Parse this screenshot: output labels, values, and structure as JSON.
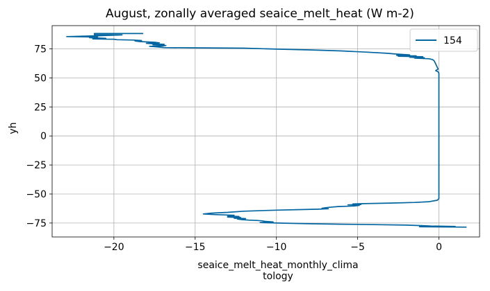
{
  "chart_data": {
    "type": "line",
    "title": "August, zonally averaged seaice_melt_heat (W m-2)",
    "xlabel_lines": [
      "seaice_melt_heat_monthly_clima",
      "tology"
    ],
    "ylabel": "yh",
    "xlim": [
      -23.8,
      2.5
    ],
    "ylim": [
      -87,
      95
    ],
    "xticks": [
      -20,
      -15,
      -10,
      -5,
      0
    ],
    "xtick_labels": [
      "−20",
      "−15",
      "−10",
      "−5",
      "0"
    ],
    "yticks": [
      -75,
      -50,
      -25,
      0,
      25,
      50,
      75
    ],
    "ytick_labels": [
      "−75",
      "−50",
      "−25",
      "0",
      "25",
      "50",
      "75"
    ],
    "grid": true,
    "legend_position": "top-right",
    "series": [
      {
        "name": "154",
        "color": "#0065a0",
        "points": [
          [
            -18.2,
            88.2
          ],
          [
            -21.2,
            88.2
          ],
          [
            -21.2,
            87.2
          ],
          [
            -19.5,
            87.0
          ],
          [
            -21.0,
            86.3
          ],
          [
            -22.9,
            85.6
          ],
          [
            -21.0,
            85.2
          ],
          [
            -21.5,
            84.6
          ],
          [
            -20.5,
            84.1
          ],
          [
            -21.3,
            83.6
          ],
          [
            -20.0,
            83.3
          ],
          [
            -19.8,
            82.9
          ],
          [
            -18.8,
            82.6
          ],
          [
            -18.3,
            82.2
          ],
          [
            -18.7,
            81.8
          ],
          [
            -18.4,
            81.3
          ],
          [
            -17.5,
            80.7
          ],
          [
            -17.2,
            80.2
          ],
          [
            -18.0,
            79.8
          ],
          [
            -17.5,
            79.3
          ],
          [
            -16.9,
            78.9
          ],
          [
            -17.6,
            78.4
          ],
          [
            -16.8,
            77.9
          ],
          [
            -17.0,
            77.5
          ],
          [
            -17.8,
            77.2
          ],
          [
            -17.4,
            76.8
          ],
          [
            -16.9,
            76.1
          ],
          [
            -15.2,
            75.9
          ],
          [
            -12.0,
            75.6
          ],
          [
            -10.0,
            74.8
          ],
          [
            -8.0,
            74.1
          ],
          [
            -6.0,
            73.2
          ],
          [
            -4.5,
            72.2
          ],
          [
            -3.2,
            71.2
          ],
          [
            -2.7,
            70.6
          ],
          [
            -2.2,
            70.2
          ],
          [
            -1.8,
            69.8
          ],
          [
            -2.6,
            69.4
          ],
          [
            -1.4,
            69.0
          ],
          [
            -2.5,
            68.6
          ],
          [
            -1.0,
            68.2
          ],
          [
            -1.8,
            67.8
          ],
          [
            -0.9,
            67.4
          ],
          [
            -1.5,
            67.0
          ],
          [
            -0.6,
            66.5
          ],
          [
            -0.4,
            65.8
          ],
          [
            -0.3,
            64.8
          ],
          [
            -0.25,
            63.5
          ],
          [
            -0.2,
            62.0
          ],
          [
            -0.15,
            60.5
          ],
          [
            -0.1,
            59.0
          ],
          [
            -0.05,
            57.6
          ],
          [
            -0.2,
            56.3
          ],
          [
            -0.05,
            55.2
          ],
          [
            0.0,
            54.0
          ],
          [
            0.0,
            45.0
          ],
          [
            0.0,
            30.0
          ],
          [
            0.0,
            15.0
          ],
          [
            0.0,
            0.0
          ],
          [
            0.0,
            -15.0
          ],
          [
            0.0,
            -30.0
          ],
          [
            0.0,
            -45.0
          ],
          [
            0.0,
            -54.0
          ],
          [
            -0.1,
            -55.4
          ],
          [
            -0.6,
            -56.6
          ],
          [
            -1.5,
            -57.3
          ],
          [
            -3.0,
            -57.8
          ],
          [
            -4.6,
            -58.3
          ],
          [
            -5.3,
            -58.6
          ],
          [
            -4.8,
            -59.0
          ],
          [
            -5.6,
            -59.4
          ],
          [
            -4.9,
            -59.8
          ],
          [
            -5.2,
            -60.3
          ],
          [
            -6.2,
            -60.8
          ],
          [
            -6.8,
            -61.5
          ],
          [
            -7.2,
            -62.3
          ],
          [
            -6.8,
            -62.7
          ],
          [
            -7.4,
            -63.1
          ],
          [
            -8.5,
            -63.4
          ],
          [
            -10.0,
            -63.9
          ],
          [
            -12.0,
            -64.8
          ],
          [
            -13.0,
            -65.8
          ],
          [
            -14.0,
            -66.5
          ],
          [
            -14.5,
            -67.2
          ],
          [
            -13.8,
            -67.7
          ],
          [
            -12.6,
            -68.3
          ],
          [
            -13.0,
            -69.0
          ],
          [
            -12.3,
            -69.4
          ],
          [
            -13.0,
            -69.9
          ],
          [
            -12.2,
            -70.3
          ],
          [
            -12.6,
            -70.8
          ],
          [
            -11.9,
            -71.2
          ],
          [
            -12.4,
            -71.6
          ],
          [
            -12.1,
            -72.1
          ],
          [
            -11.7,
            -72.5
          ],
          [
            -11.2,
            -72.8
          ],
          [
            -10.9,
            -73.1
          ],
          [
            -10.7,
            -73.6
          ],
          [
            -10.2,
            -74.1
          ],
          [
            -11.0,
            -74.6
          ],
          [
            -9.5,
            -75.1
          ],
          [
            -8.0,
            -75.6
          ],
          [
            -6.0,
            -76.0
          ],
          [
            -4.0,
            -76.4
          ],
          [
            -2.0,
            -76.8
          ],
          [
            -1.1,
            -77.2
          ],
          [
            -0.5,
            -77.6
          ],
          [
            1.0,
            -77.9
          ],
          [
            -1.2,
            -78.2
          ],
          [
            1.7,
            -78.5
          ]
        ]
      }
    ]
  }
}
